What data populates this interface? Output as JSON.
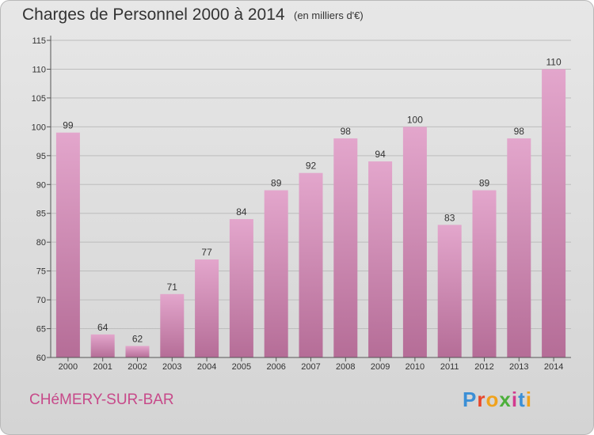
{
  "header": {
    "title": "Charges de Personnel 2000 à 2014",
    "subtitle": "(en milliers d'€)"
  },
  "footer": {
    "commune": "CHéMERY-SUR-BAR",
    "logo_text": "Proxiti",
    "logo_letters": [
      "P",
      "r",
      "o",
      "x",
      "i",
      "t",
      "i"
    ],
    "logo_colors": [
      "#3b8fd6",
      "#e8462a",
      "#f0a21c",
      "#4caf3a",
      "#d23a8f",
      "#3b8fd6",
      "#f0a21c"
    ]
  },
  "chart_data": {
    "type": "bar",
    "title": "Charges de Personnel 2000 à 2014",
    "subtitle": "(en milliers d'€)",
    "categories": [
      "2000",
      "2001",
      "2002",
      "2003",
      "2004",
      "2005",
      "2006",
      "2007",
      "2008",
      "2009",
      "2010",
      "2011",
      "2012",
      "2013",
      "2014"
    ],
    "values": [
      99,
      64,
      62,
      71,
      77,
      84,
      89,
      92,
      98,
      94,
      100,
      83,
      89,
      98,
      110
    ],
    "ylim": [
      60,
      115
    ],
    "yticks": [
      60,
      65,
      70,
      75,
      80,
      85,
      90,
      95,
      100,
      105,
      110,
      115
    ],
    "grid": "horizontal",
    "bar_color_top": "#e3a6cc",
    "bar_color_bottom": "#b56d97",
    "grid_color": "#bdbdbd",
    "axis_color": "#555555"
  }
}
